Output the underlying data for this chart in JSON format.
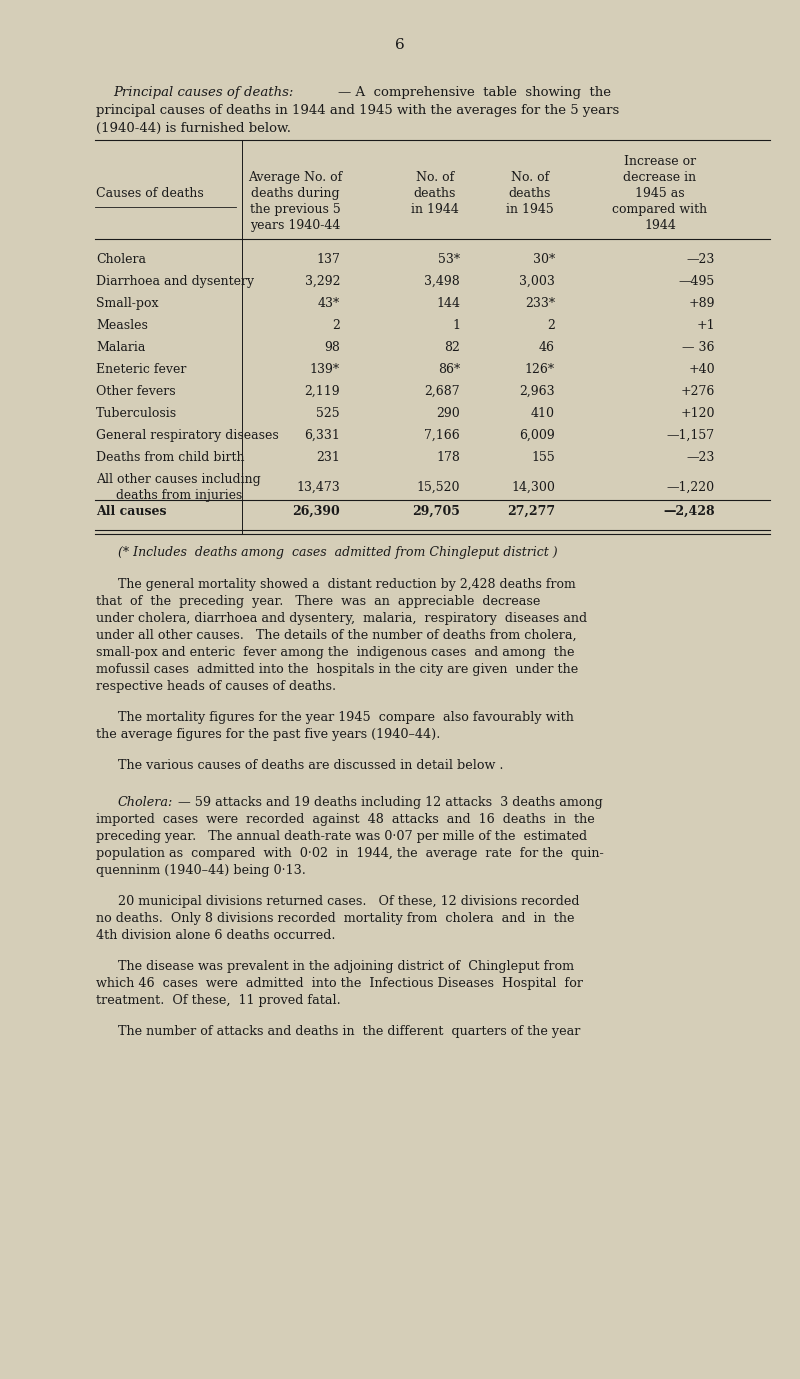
{
  "page_number": "6",
  "bg_color": "#d5ceB8",
  "text_color": "#1a1a1a",
  "rows": [
    [
      "Cholera",
      "137",
      "53*",
      "30*",
      "—23"
    ],
    [
      "Diarrhoea and dysentery",
      "3,292",
      "3,498",
      "3,003",
      "—495"
    ],
    [
      "Small-pox",
      "43*",
      "144",
      "233*",
      "+89"
    ],
    [
      "Measles",
      "2",
      "1",
      "2",
      "+1"
    ],
    [
      "Malaria",
      "98",
      "82",
      "46",
      "— 36"
    ],
    [
      "Eneteric fever",
      "139*",
      "86*",
      "126*",
      "+40"
    ],
    [
      "Other fevers",
      "2,119",
      "2,687",
      "2,963",
      "+276"
    ],
    [
      "Tuberculosis",
      "525",
      "290",
      "410",
      "+120"
    ],
    [
      "General respiratory diseases",
      "6,331",
      "7,166",
      "6,009",
      "—1,157"
    ],
    [
      "Deaths from child birth",
      "231",
      "178",
      "155",
      "—23"
    ],
    [
      "All other causes including",
      "13,473",
      "15,520",
      "14,300",
      "—1,220"
    ],
    [
      "All causes",
      "26,390",
      "29,705",
      "27,277",
      "—2,428"
    ]
  ]
}
